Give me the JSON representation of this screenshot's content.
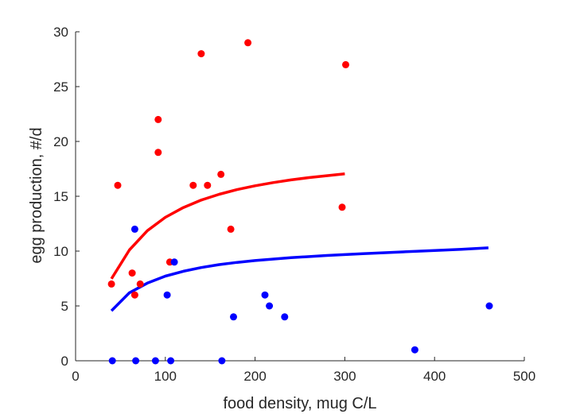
{
  "chart_data": {
    "type": "scatter",
    "xlabel": "food density, mug C/L",
    "ylabel": "egg production, #/d",
    "xlim": [
      0,
      500
    ],
    "ylim": [
      0,
      30
    ],
    "xticks": [
      "0",
      "100",
      "200",
      "300",
      "400",
      "500"
    ],
    "yticks": [
      "0",
      "5",
      "10",
      "15",
      "20",
      "25",
      "30"
    ],
    "grid": false,
    "legend": "none",
    "series": [
      {
        "color": "#ff0000",
        "points": [
          [
            40,
            7
          ],
          [
            47,
            16
          ],
          [
            63,
            8
          ],
          [
            66,
            6
          ],
          [
            72,
            7
          ],
          [
            92,
            22
          ],
          [
            92,
            19
          ],
          [
            105,
            9
          ],
          [
            131,
            16
          ],
          [
            140,
            28
          ],
          [
            147,
            16
          ],
          [
            162,
            17
          ],
          [
            173,
            12
          ],
          [
            192,
            29
          ],
          [
            297,
            14
          ],
          [
            301,
            27
          ]
        ],
        "fit": {
          "x": [
            40,
            60,
            80,
            100,
            120,
            140,
            160,
            180,
            200,
            220,
            240,
            260,
            280,
            300
          ],
          "y": [
            7.48,
            10.11,
            11.86,
            13.08,
            13.97,
            14.65,
            15.18,
            15.61,
            15.96,
            16.25,
            16.49,
            16.7,
            16.88,
            17.04
          ]
        }
      },
      {
        "color": "#0000ff",
        "points": [
          [
            41,
            0
          ],
          [
            66,
            12
          ],
          [
            67,
            0
          ],
          [
            89,
            0
          ],
          [
            102,
            6
          ],
          [
            106,
            0
          ],
          [
            110,
            9
          ],
          [
            163,
            0
          ],
          [
            176,
            4
          ],
          [
            211,
            6
          ],
          [
            216,
            5
          ],
          [
            233,
            4
          ],
          [
            378,
            1
          ],
          [
            461,
            5
          ]
        ],
        "fit": {
          "x": [
            40,
            60,
            80,
            100,
            120,
            140,
            160,
            180,
            200,
            240,
            280,
            320,
            360,
            400,
            430,
            460
          ],
          "y": [
            4.56,
            6.2,
            7.08,
            7.72,
            8.16,
            8.5,
            8.77,
            8.97,
            9.14,
            9.4,
            9.6,
            9.77,
            9.91,
            10.05,
            10.17,
            10.3
          ]
        }
      }
    ]
  }
}
